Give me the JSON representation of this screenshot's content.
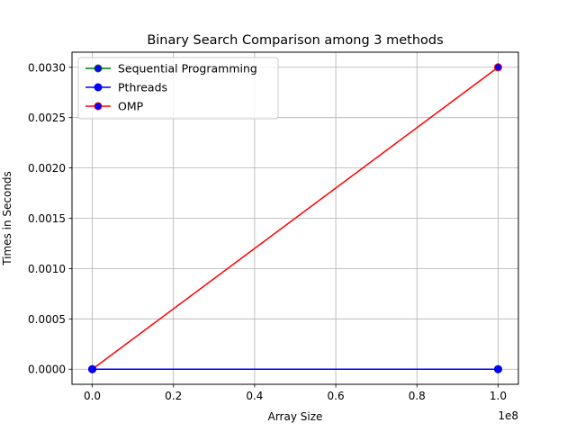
{
  "chart_data": {
    "type": "line",
    "title": "Binary Search Comparison among 3 methods",
    "xlabel": "Array Size",
    "ylabel": "Times in Seconds",
    "x_offset_text": "1e8",
    "xlim": [
      -5000000,
      105000000
    ],
    "ylim": [
      -0.00015,
      0.00315
    ],
    "x_ticks": [
      0,
      20000000,
      40000000,
      60000000,
      80000000,
      100000000
    ],
    "x_tick_labels": [
      "0.0",
      "0.2",
      "0.4",
      "0.6",
      "0.8",
      "1.0"
    ],
    "y_ticks": [
      0,
      0.0005,
      0.001,
      0.0015,
      0.002,
      0.0025,
      0.003
    ],
    "y_tick_labels": [
      "0.0000",
      "0.0005",
      "0.0010",
      "0.0015",
      "0.0020",
      "0.0025",
      "0.0030"
    ],
    "grid": true,
    "legend_position": "top-left",
    "x": [
      0,
      100000000
    ],
    "series": [
      {
        "name": "Sequential Programming",
        "values": [
          0,
          0
        ],
        "color": "#008000",
        "marker_face": "#0000ff"
      },
      {
        "name": "Pthreads",
        "values": [
          0,
          0
        ],
        "color": "#0000ff",
        "marker_face": "#0000ff"
      },
      {
        "name": "OMP",
        "values": [
          0,
          0.003
        ],
        "color": "#ff0000",
        "marker_face": "#0000ff"
      }
    ],
    "draw_order": [
      0,
      2,
      1
    ]
  }
}
